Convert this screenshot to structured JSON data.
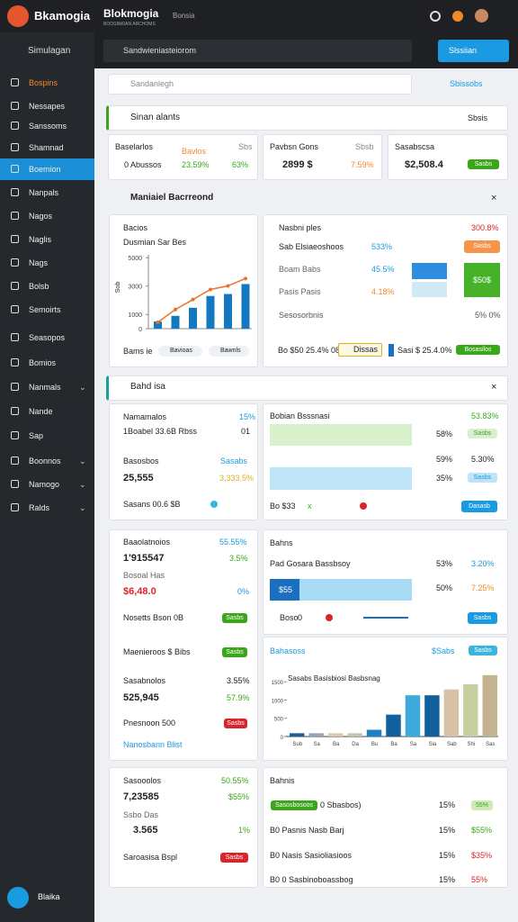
{
  "header": {
    "logo": "Bkamogia",
    "app_title": "Blokmogia",
    "app_subtitle": "BOOSINKIAN ARCHOMS",
    "breadcrumb": "Bonsia",
    "search_placeholder": "Sandwieniasteiorom",
    "action_button": "Slssiian"
  },
  "sidebar": {
    "search": "Simulagan",
    "items": [
      "Bospins",
      "Nessapes",
      "Sanssoms",
      "Shamnad",
      "Boemion",
      "Nanpals",
      "Nagos",
      "Naglis",
      "Nags",
      "Bolsb",
      "Semoirts",
      "Seasopos",
      "Bomios",
      "Nanmals",
      "Nande",
      "Sap",
      "Boonnos",
      "Namogo",
      "Ralds"
    ],
    "user": "Blaika"
  },
  "toolbar": {
    "search_placeholder": "Sandanlegh",
    "link": "Sbissobs"
  },
  "alerts_panel": {
    "title": "Sinan alants",
    "action": "Sbsis"
  },
  "stat_cards": [
    {
      "label": "Baselarlos",
      "tag": "Bavlos",
      "meta": "Sbs",
      "value": "0 Abussos",
      "change": "23.59%",
      "change2": "63%"
    },
    {
      "label": "Pavbsn Gons",
      "meta": "Sbsb",
      "value": "2899 $",
      "change": "7.59%"
    },
    {
      "label": "Sasabscsa",
      "value": "$2,508.4",
      "badge": "Sasbs"
    }
  ],
  "section1": {
    "title": "Maniaiel Bacrreond"
  },
  "chart_card": {
    "title": "Bacios",
    "subtitle": "Dusmian Sar Bes",
    "axis_label": "Sob",
    "footer": "Bams ie",
    "legend": [
      "Bavioas",
      "Bawnls"
    ],
    "chart": {
      "ylim": [
        0,
        5200
      ],
      "yticks": [
        0,
        1000,
        3000,
        5000
      ],
      "bars": [
        500,
        900,
        1470,
        2300,
        2440,
        3140
      ],
      "line": [
        450,
        1350,
        2050,
        2760,
        3010,
        3530
      ],
      "bar_color": "#1478c0",
      "line_color": "#e8742c"
    }
  },
  "compare_panel": {
    "rows": [
      {
        "label": "Nasbni ples",
        "value": "300.8%"
      },
      {
        "label": "Sab Elsiaeoshoos",
        "value": "533%",
        "button": "Sasbs"
      },
      {
        "label": "Boam Babs",
        "value": "45.5%",
        "box": "$50$"
      },
      {
        "label": "Pasis Pasis",
        "value": "4.18%"
      },
      {
        "label": "Sesosorbnis",
        "value": "5% 0%"
      }
    ],
    "footer_left": "Bo $50 25.4% 08",
    "footer_pill": "Dissas",
    "footer_mid": "Sasi $ 25.4.0%",
    "footer_button": "Bosasilos"
  },
  "section2": {
    "title": "Bahd isa"
  },
  "card_a": {
    "rows": [
      [
        "Namamalos",
        "15%"
      ],
      [
        "1Boabel 33.6B Rbss",
        "01"
      ],
      [
        "Basosbos",
        "Sasabs"
      ],
      [
        "25,555",
        "3,333.5%"
      ],
      [
        "Sasans 00.6 $B"
      ]
    ]
  },
  "card_b": {
    "title": "Bobian Bsssnasi",
    "title_value": "53.83%",
    "rows": [
      [
        "58%",
        "Sasbs"
      ],
      [
        "59%",
        "5.30%"
      ],
      [
        "35%",
        "Sasbs"
      ]
    ],
    "footer": "Bo $33",
    "footer_mark": "x",
    "button": "Dasasb"
  },
  "card_c": {
    "rows": [
      [
        "Baaolatnoios",
        "55.55%"
      ],
      [
        "1'915547",
        "3.5%"
      ],
      [
        "Bosoal Has"
      ],
      [
        "$6,48.0",
        "0%"
      ],
      [
        "Nosetts Bson 0B",
        "Sasbs"
      ],
      [
        "Maenieroos $ Bibs",
        "Sasbs"
      ],
      [
        "Sasabnolos",
        "3.55%"
      ],
      [
        "525,945",
        "57.9%"
      ],
      [
        "Pnesnoon 500",
        "Sasbs"
      ],
      [
        "Nanosbann Blist"
      ]
    ]
  },
  "card_d": {
    "title": "Bahns",
    "row_label": "Pad Gosara Bassbsoy",
    "rows": [
      [
        "53%",
        "3.20%"
      ],
      [
        "50%",
        "7.25%"
      ]
    ],
    "bar_label": "$55",
    "footer": "Boso",
    "footer_value": "0",
    "button": "Sasbs"
  },
  "card_e": {
    "title": "Bahasoss",
    "link": "$Sabs",
    "button": "Sasbs",
    "chart": {
      "title": "Sasabs Basisbiosi Basbsnag",
      "categories": [
        "Sub",
        "Sa",
        "Ba",
        "Da",
        "Bu",
        "Ba",
        "Sa",
        "Sia",
        "Sab",
        "Shi",
        "Sas"
      ],
      "values": [
        90,
        90,
        90,
        90,
        185,
        600,
        1130,
        1130,
        1290,
        1430,
        1680
      ],
      "colors": [
        "#1a5e9e",
        "#9aa3ad",
        "#d9c9a6",
        "#c9c2b0",
        "#1d7fc4",
        "#13609e",
        "#3da9dc",
        "#12609c",
        "#d7c2a5",
        "#c6cfa0",
        "#c5b291"
      ],
      "ylim": [
        0,
        1800
      ],
      "yticks": [
        0,
        500,
        1000,
        1500
      ]
    }
  },
  "card_f": {
    "rows": [
      [
        "Sasooolos",
        "50.55%"
      ],
      [
        "7,23585",
        "$55%"
      ],
      [
        "Ssbo Das"
      ],
      [
        "3.565",
        "1%"
      ],
      [
        "Saroasisa Bspl",
        "Sasbs"
      ]
    ]
  },
  "card_g": {
    "title": "Bahnis",
    "rows": [
      [
        "Sasosbosoos",
        "0 Sbasbos)",
        "15%",
        "55%"
      ],
      [
        "B0 Pasnis Nasb Barj",
        "15%",
        "$55%"
      ],
      [
        "B0 Nasis Sasioliasioos",
        "15%",
        "$35%"
      ],
      [
        "B0 0 Sasbinoboassbog",
        "15%",
        "55%"
      ]
    ]
  }
}
